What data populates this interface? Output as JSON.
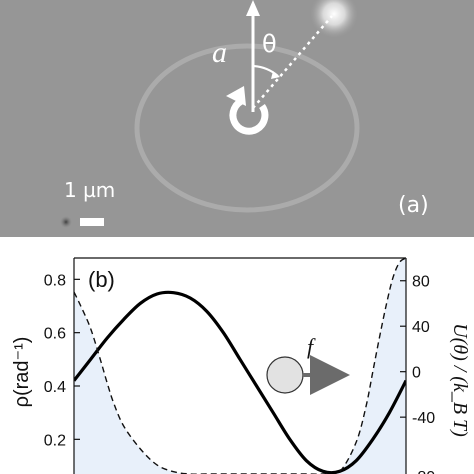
{
  "panel_a": {
    "label": "(a)",
    "scale_bar_label": "1 µm",
    "theta_symbol": "θ",
    "a_symbol": "a",
    "colors": {
      "background": "#9a9a9a",
      "annotation": "#ffffff"
    }
  },
  "panel_b": {
    "label": "(b)",
    "force_symbol": "f",
    "colors": {
      "ball": "#e2e2e2",
      "arrow": "#6b6b6b",
      "shade": "#e8f0fa"
    }
  },
  "chart_data": {
    "type": "line",
    "xlim": [
      0,
      1
    ],
    "left_axis": {
      "ylabel": "ρ(rad⁻¹)",
      "ylim": [
        0.07,
        0.88
      ],
      "ticks": [
        0.2,
        0.4,
        0.6,
        0.8
      ],
      "tick_labels": [
        "0.2",
        "0.4",
        "0.6",
        "0.8"
      ]
    },
    "right_axis": {
      "ylabel": "U(θ) / (k_B T)",
      "ylim": [
        -90,
        100
      ],
      "ticks": [
        -40,
        0,
        40,
        80
      ],
      "tick_labels": [
        "-40",
        "0",
        "40",
        "80"
      ],
      "partial_tick_label": "-80"
    },
    "series": [
      {
        "style": "solid",
        "axis": "left",
        "x": [
          0,
          0.05,
          0.1,
          0.15,
          0.2,
          0.25,
          0.3,
          0.35,
          0.4,
          0.45,
          0.5,
          0.55,
          0.6,
          0.65,
          0.7,
          0.75,
          0.8,
          0.85,
          0.9,
          0.95,
          1.0
        ],
        "y": [
          0.42,
          0.5,
          0.58,
          0.65,
          0.71,
          0.745,
          0.75,
          0.73,
          0.68,
          0.6,
          0.5,
          0.4,
          0.3,
          0.2,
          0.12,
          0.08,
          0.08,
          0.12,
          0.2,
          0.3,
          0.42
        ]
      },
      {
        "style": "dashed",
        "axis": "right",
        "x": [
          0,
          0.02,
          0.05,
          0.08,
          0.1,
          0.12,
          0.15,
          0.2,
          0.25,
          0.3,
          0.35,
          0.4,
          0.45,
          0.5,
          0.55,
          0.6,
          0.65,
          0.7,
          0.75,
          0.8,
          0.85,
          0.88,
          0.9,
          0.92,
          0.94,
          0.96,
          0.98,
          1.0
        ],
        "y": [
          70,
          58,
          38,
          10,
          -10,
          -28,
          -48,
          -68,
          -82,
          -88,
          -90,
          -90,
          -90,
          -90,
          -90,
          -90,
          -90,
          -90,
          -90,
          -88,
          -62,
          -30,
          0,
          30,
          58,
          82,
          96,
          100
        ]
      }
    ],
    "grid": false,
    "legend": "none"
  }
}
